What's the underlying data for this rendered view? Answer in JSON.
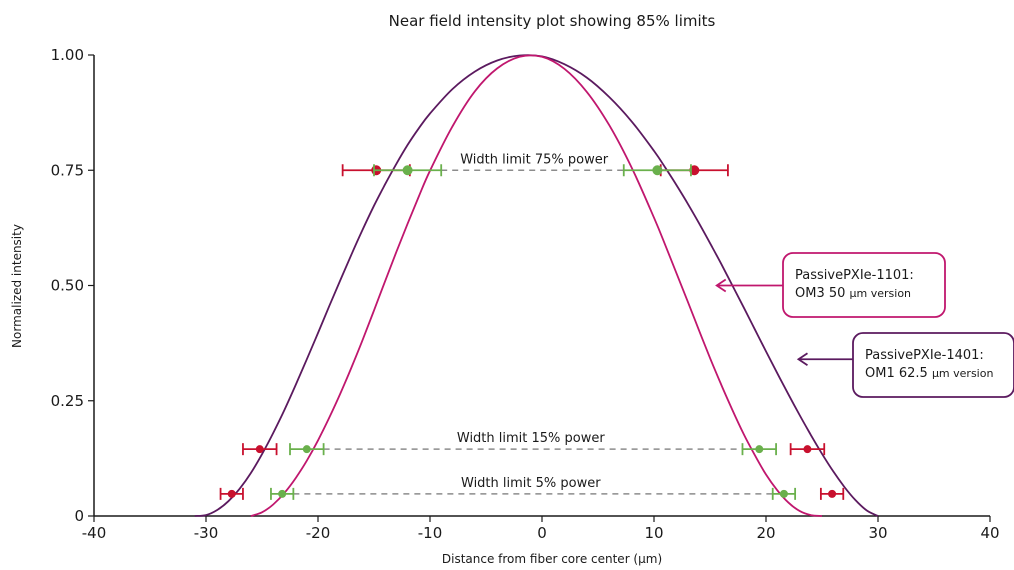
{
  "chart_data": {
    "type": "line",
    "title": "Near field intensity plot showing 85% limits",
    "xlabel": "Distance from fiber core center (µm)",
    "ylabel": "Normalized intensity",
    "xlim": [
      -40,
      40
    ],
    "ylim": [
      0,
      1.0
    ],
    "xticks": [
      -40,
      -30,
      -20,
      -10,
      0,
      10,
      20,
      30,
      40
    ],
    "xtick_labels": [
      "-40",
      "-30",
      "-20",
      "-10",
      "0",
      "10",
      "20",
      "30",
      "40"
    ],
    "yticks": [
      0,
      0.25,
      0.5,
      0.75,
      1.0
    ],
    "ytick_labels": [
      "0",
      "0.25",
      "0.50",
      "0.75",
      "1.00"
    ],
    "grid": false,
    "series": [
      {
        "name": "PassivePXIe-1401: OM1 62.5 µm version",
        "color": "#5b1a5f",
        "x": [
          -31,
          -30,
          -29,
          -28,
          -27,
          -26,
          -25,
          -24,
          -23,
          -22,
          -21,
          -20,
          -19,
          -18,
          -17,
          -16,
          -15,
          -14,
          -13,
          -12,
          -11,
          -10,
          -8,
          -6,
          -4,
          -2,
          0,
          2,
          4,
          6,
          8,
          10,
          11,
          12,
          13,
          14,
          15,
          16,
          17,
          18,
          19,
          20,
          21,
          22,
          23,
          24,
          25,
          26,
          27,
          28,
          29,
          30
        ],
        "y": [
          0.0,
          0.002,
          0.013,
          0.032,
          0.059,
          0.093,
          0.134,
          0.18,
          0.23,
          0.284,
          0.34,
          0.397,
          0.455,
          0.512,
          0.568,
          0.622,
          0.673,
          0.72,
          0.764,
          0.805,
          0.841,
          0.873,
          0.926,
          0.964,
          0.988,
          0.999,
          0.997,
          0.98,
          0.951,
          0.909,
          0.856,
          0.792,
          0.756,
          0.718,
          0.678,
          0.636,
          0.592,
          0.547,
          0.5,
          0.453,
          0.405,
          0.357,
          0.31,
          0.264,
          0.219,
          0.176,
          0.135,
          0.097,
          0.063,
          0.034,
          0.012,
          0.0
        ]
      },
      {
        "name": "PassivePXIe-1101: OM3 50 µm version",
        "color": "#c0176e",
        "x": [
          -26,
          -25,
          -24,
          -23,
          -22,
          -21,
          -20,
          -19,
          -18,
          -17,
          -16,
          -15,
          -14,
          -13,
          -12,
          -11,
          -10,
          -8,
          -6,
          -4,
          -2,
          0,
          2,
          4,
          6,
          8,
          10,
          11,
          12,
          13,
          14,
          15,
          16,
          17,
          18,
          19,
          20,
          21,
          22,
          23,
          24,
          25
        ],
        "y": [
          0.0,
          0.008,
          0.025,
          0.05,
          0.082,
          0.12,
          0.164,
          0.213,
          0.266,
          0.323,
          0.383,
          0.446,
          0.51,
          0.573,
          0.634,
          0.693,
          0.749,
          0.845,
          0.921,
          0.971,
          0.996,
          0.996,
          0.97,
          0.92,
          0.848,
          0.756,
          0.647,
          0.588,
          0.527,
          0.466,
          0.404,
          0.343,
          0.285,
          0.23,
          0.178,
          0.132,
          0.09,
          0.056,
          0.029,
          0.011,
          0.002,
          0.0
        ]
      }
    ],
    "markers": [
      {
        "color": "#c8102e",
        "y": 0.75,
        "x": [
          -14.8,
          13.6
        ],
        "xerr": 3.0
      },
      {
        "color": "#6ab04c",
        "y": 0.75,
        "x": [
          -12.0,
          10.3
        ],
        "xerr": 3.0
      },
      {
        "color": "#c8102e",
        "y": 0.145,
        "x": [
          -25.2,
          23.7
        ],
        "xerr": 1.5
      },
      {
        "color": "#6ab04c",
        "y": 0.145,
        "x": [
          -21.0,
          19.4
        ],
        "xerr": 1.5
      },
      {
        "color": "#c8102e",
        "y": 0.048,
        "x": [
          -27.7,
          25.9
        ],
        "xerr": 1.0
      },
      {
        "color": "#6ab04c",
        "y": 0.048,
        "x": [
          -23.2,
          21.6
        ],
        "xerr": 1.0
      }
    ],
    "width_lines": [
      {
        "y": 0.75,
        "x": [
          -9.0,
          7.3
        ],
        "label": "Width limit 75% power",
        "label_x": -0.7
      },
      {
        "y": 0.145,
        "x": [
          -19.5,
          17.9
        ],
        "label": "Width limit 15% power",
        "label_x": -1.0
      },
      {
        "y": 0.048,
        "x": [
          -22.2,
          20.6
        ],
        "label": "Width limit 5% power",
        "label_x": -1.0
      }
    ],
    "callouts": [
      {
        "series": 1,
        "line1": "PassivePXIe-1101:",
        "line2a": "OM3 50 ",
        "line2b": "µm version",
        "color": "#c0176e",
        "arrow_to": [
          15.6,
          0.5
        ]
      },
      {
        "series": 0,
        "line1": "PassivePXIe-1401:",
        "line2a": "OM1 62.5 ",
        "line2b": "µm version",
        "color": "#5b1a5f",
        "arrow_to": [
          22.9,
          0.34
        ]
      }
    ]
  }
}
